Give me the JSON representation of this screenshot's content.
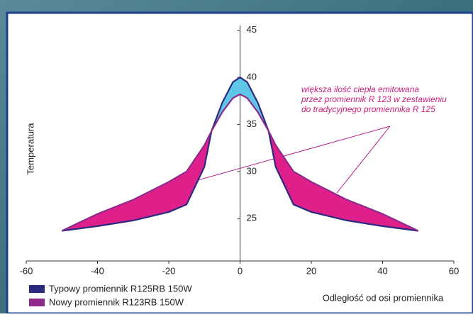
{
  "chart_data": {
    "type": "difference",
    "x_label": "Odległość od osi promiennika",
    "y_label": "Temperatura",
    "annotation": [
      "większa ilość ciepła emitowana",
      "przez promiennik R 123 w zestawieniu",
      "do tradycyjnego promiennika R 125"
    ],
    "x": [
      -50,
      -40,
      -30,
      -20,
      -15,
      -10,
      -8,
      -5,
      -2,
      0,
      2,
      5,
      8,
      10,
      15,
      20,
      30,
      40,
      50
    ],
    "series": [
      {
        "name": "Typowy promiennik R125RB 150W",
        "color": "#2b2a80",
        "fill": "#5ec6e6",
        "values": [
          23.7,
          24.2,
          24.8,
          25.7,
          26.5,
          30.5,
          34.3,
          37.3,
          39.5,
          40,
          39.5,
          37.3,
          34.3,
          30.5,
          26.5,
          25.7,
          24.8,
          24.2,
          23.7
        ]
      },
      {
        "name": "Nowy promiennik R123RB 150W",
        "color": "#8e2a8c",
        "fill": "#e0208a",
        "values": [
          23.7,
          25.5,
          27,
          28.9,
          30,
          32.8,
          34.3,
          36.3,
          37.8,
          38.2,
          37.8,
          36.3,
          34.3,
          32.8,
          30,
          28.9,
          27,
          25.5,
          23.7
        ]
      }
    ],
    "xlim": [
      -60,
      60
    ],
    "xticks": [
      -60,
      -40,
      -20,
      0,
      20,
      40,
      60
    ],
    "ylim": [
      20.5,
      45.5
    ],
    "yticks": [
      25,
      30,
      35,
      40,
      45
    ]
  }
}
